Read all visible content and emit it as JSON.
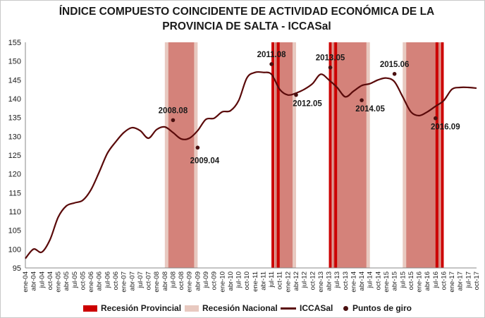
{
  "chart_data": {
    "type": "line",
    "title_line1": "ÍNDICE COMPUESTO COINCIDENTE DE ACTIVIDAD ECONÓMICA DE LA",
    "title_line2": "PROVINCIA DE SALTA - ICCASal",
    "ylim": [
      95,
      155
    ],
    "yticks": [
      95,
      100,
      105,
      110,
      115,
      120,
      125,
      130,
      135,
      140,
      145,
      150,
      155
    ],
    "grid": false,
    "legend_position": "bottom",
    "x_tick_labels": [
      "ene-04",
      "abr-04",
      "jul-04",
      "oct-04",
      "ene-05",
      "abr-05",
      "jul-05",
      "oct-05",
      "ene-06",
      "abr-06",
      "jul-06",
      "oct-06",
      "ene-07",
      "abr-07",
      "jul-07",
      "oct-07",
      "ene-08",
      "abr-08",
      "jul-08",
      "oct-08",
      "ene-09",
      "abr-09",
      "jul-09",
      "oct-09",
      "ene-10",
      "abr-10",
      "jul-10",
      "oct-10",
      "ene-11",
      "abr-11",
      "jul-11",
      "oct-11",
      "ene-12",
      "abr-12",
      "jul-12",
      "oct-12",
      "ene-13",
      "abr-13",
      "jul-13",
      "oct-13",
      "ene-14",
      "abr-14",
      "jul-14",
      "oct-14",
      "ene-15",
      "abr-15",
      "jul-15",
      "oct-15",
      "ene-16",
      "abr-16",
      "jul-16",
      "oct-16",
      "ene-17",
      "abr-17",
      "jul-17",
      "oct-17"
    ],
    "series": [
      {
        "name": "ICCASal",
        "color": "#5a0a0a",
        "x": [
          "ene-04",
          "abr-04",
          "jul-04",
          "oct-04",
          "ene-05",
          "abr-05",
          "jul-05",
          "oct-05",
          "ene-06",
          "abr-06",
          "jul-06",
          "oct-06",
          "ene-07",
          "abr-07",
          "jul-07",
          "oct-07",
          "ene-08",
          "abr-08",
          "jul-08",
          "oct-08",
          "ene-09",
          "abr-09",
          "jul-09",
          "oct-09",
          "ene-10",
          "abr-10",
          "jul-10",
          "oct-10",
          "ene-11",
          "abr-11",
          "jul-11",
          "oct-11",
          "ene-12",
          "abr-12",
          "jul-12",
          "oct-12",
          "ene-13",
          "abr-13",
          "jul-13",
          "oct-13",
          "ene-14",
          "abr-14",
          "jul-14",
          "oct-14",
          "ene-15",
          "abr-15",
          "jul-15",
          "oct-15",
          "ene-16",
          "abr-16",
          "jul-16",
          "oct-16",
          "ene-17",
          "abr-17",
          "jul-17",
          "oct-17"
        ],
        "values": [
          97.5,
          100.0,
          99.2,
          102.5,
          108.5,
          111.5,
          112.3,
          113.0,
          115.8,
          120.5,
          125.5,
          128.5,
          131.0,
          132.3,
          131.5,
          129.5,
          131.8,
          132.5,
          131.0,
          129.3,
          129.5,
          131.5,
          134.5,
          134.8,
          136.5,
          136.8,
          139.5,
          145.5,
          147.0,
          147.0,
          146.5,
          142.5,
          141.0,
          141.5,
          142.5,
          144.0,
          146.5,
          145.0,
          143.0,
          140.5,
          142.0,
          143.5,
          144.0,
          145.0,
          145.5,
          144.5,
          140.5,
          136.5,
          135.5,
          136.5,
          138.0,
          139.5,
          142.5,
          143.0,
          143.0,
          142.8
        ]
      }
    ],
    "recessions_provincial": [
      {
        "start": "jul-11",
        "end": "oct-11"
      },
      {
        "start": "abr-13",
        "end": "jul-13"
      },
      {
        "start": "jul-16",
        "end": "oct-16"
      }
    ],
    "recessions_national": [
      {
        "start": "abr-08",
        "end": "abr-09"
      },
      {
        "start": "jul-11",
        "end": "abr-12"
      },
      {
        "start": "abr-13",
        "end": "jul-14"
      },
      {
        "start": "jul-15",
        "end": "oct-16"
      }
    ],
    "turning_points": [
      {
        "label": "2008.08",
        "x": "jul-08",
        "y": 134.3
      },
      {
        "label": "2009.04",
        "x": "abr-09",
        "y": 127.0
      },
      {
        "label": "2011.08",
        "x": "jul-11",
        "y": 149.2
      },
      {
        "label": "2012.05",
        "x": "abr-12",
        "y": 141.0
      },
      {
        "label": "2013.05",
        "x": "abr-13",
        "y": 148.3
      },
      {
        "label": "2014.05",
        "x": "abr-14",
        "y": 139.6
      },
      {
        "label": "2015.06",
        "x": "abr-15",
        "y": 146.6
      },
      {
        "label": "2016.09",
        "x": "jul-16",
        "y": 134.8
      }
    ],
    "legend": {
      "provincial": "Recesión Provincial",
      "national": "Recesión Nacional",
      "series": "ICCASal",
      "points": "Puntos de giro"
    },
    "colors": {
      "provincial_band": "#cc0000",
      "national_band": "#d4827a",
      "national_band_edge": "#e8c9c0",
      "line": "#5a0a0a",
      "points": "#4a1010"
    }
  }
}
